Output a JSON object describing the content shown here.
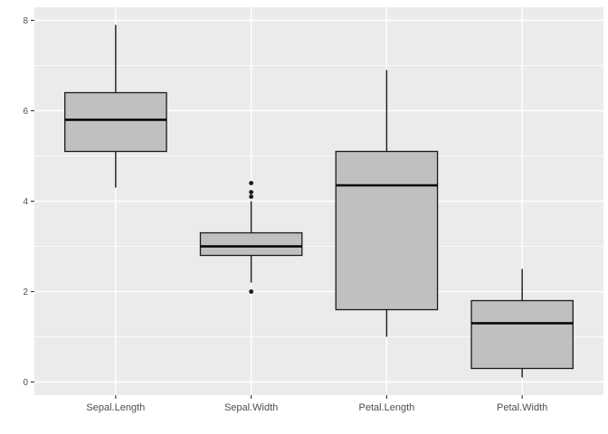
{
  "page": {
    "background": "#FFFFFF"
  },
  "chart_data": {
    "type": "boxplot",
    "title": "",
    "xlabel": "",
    "ylabel": "",
    "categories": [
      "Sepal.Length",
      "Sepal.Width",
      "Petal.Length",
      "Petal.Width"
    ],
    "series": [
      {
        "name": "Sepal.Length",
        "whisker_low": 4.3,
        "q1": 5.1,
        "median": 5.8,
        "q3": 6.4,
        "whisker_high": 7.9,
        "outliers": []
      },
      {
        "name": "Sepal.Width",
        "whisker_low": 2.2,
        "q1": 2.8,
        "median": 3.0,
        "q3": 3.3,
        "whisker_high": 4.0,
        "outliers": [
          2.0,
          4.1,
          4.2,
          4.4
        ]
      },
      {
        "name": "Petal.Length",
        "whisker_low": 1.0,
        "q1": 1.6,
        "median": 4.35,
        "q3": 5.1,
        "whisker_high": 6.9,
        "outliers": []
      },
      {
        "name": "Petal.Width",
        "whisker_low": 0.1,
        "q1": 0.3,
        "median": 1.3,
        "q3": 1.8,
        "whisker_high": 2.5,
        "outliers": []
      }
    ],
    "y_axis": {
      "tick_labels": [
        "0",
        "2",
        "4",
        "6",
        "8"
      ],
      "tick_values": [
        0,
        2,
        4,
        6,
        8
      ],
      "minor_values": [
        1,
        3,
        5,
        7
      ],
      "range": [
        -0.29,
        8.29
      ]
    },
    "x_axis": {
      "positions": [
        1,
        2,
        3,
        4
      ],
      "range": [
        0.4,
        4.6
      ],
      "grid_at_categories": true
    },
    "box_width": 0.75,
    "legend": null,
    "grid": {
      "major": true,
      "minor_y": true,
      "minor_x": false
    },
    "colors": {
      "panel_background": "#EBEBEB",
      "grid_major": "#FFFFFF",
      "grid_minor": "#FFFFFF",
      "box_fill": "#C0C0C0",
      "box_stroke": "#1A1A1A",
      "median_stroke": "#000000",
      "whisker_stroke": "#1A1A1A",
      "outlier_fill": "#1A1A1A",
      "axis_text": "#4D4D4D",
      "tick_mark": "#333333"
    }
  }
}
